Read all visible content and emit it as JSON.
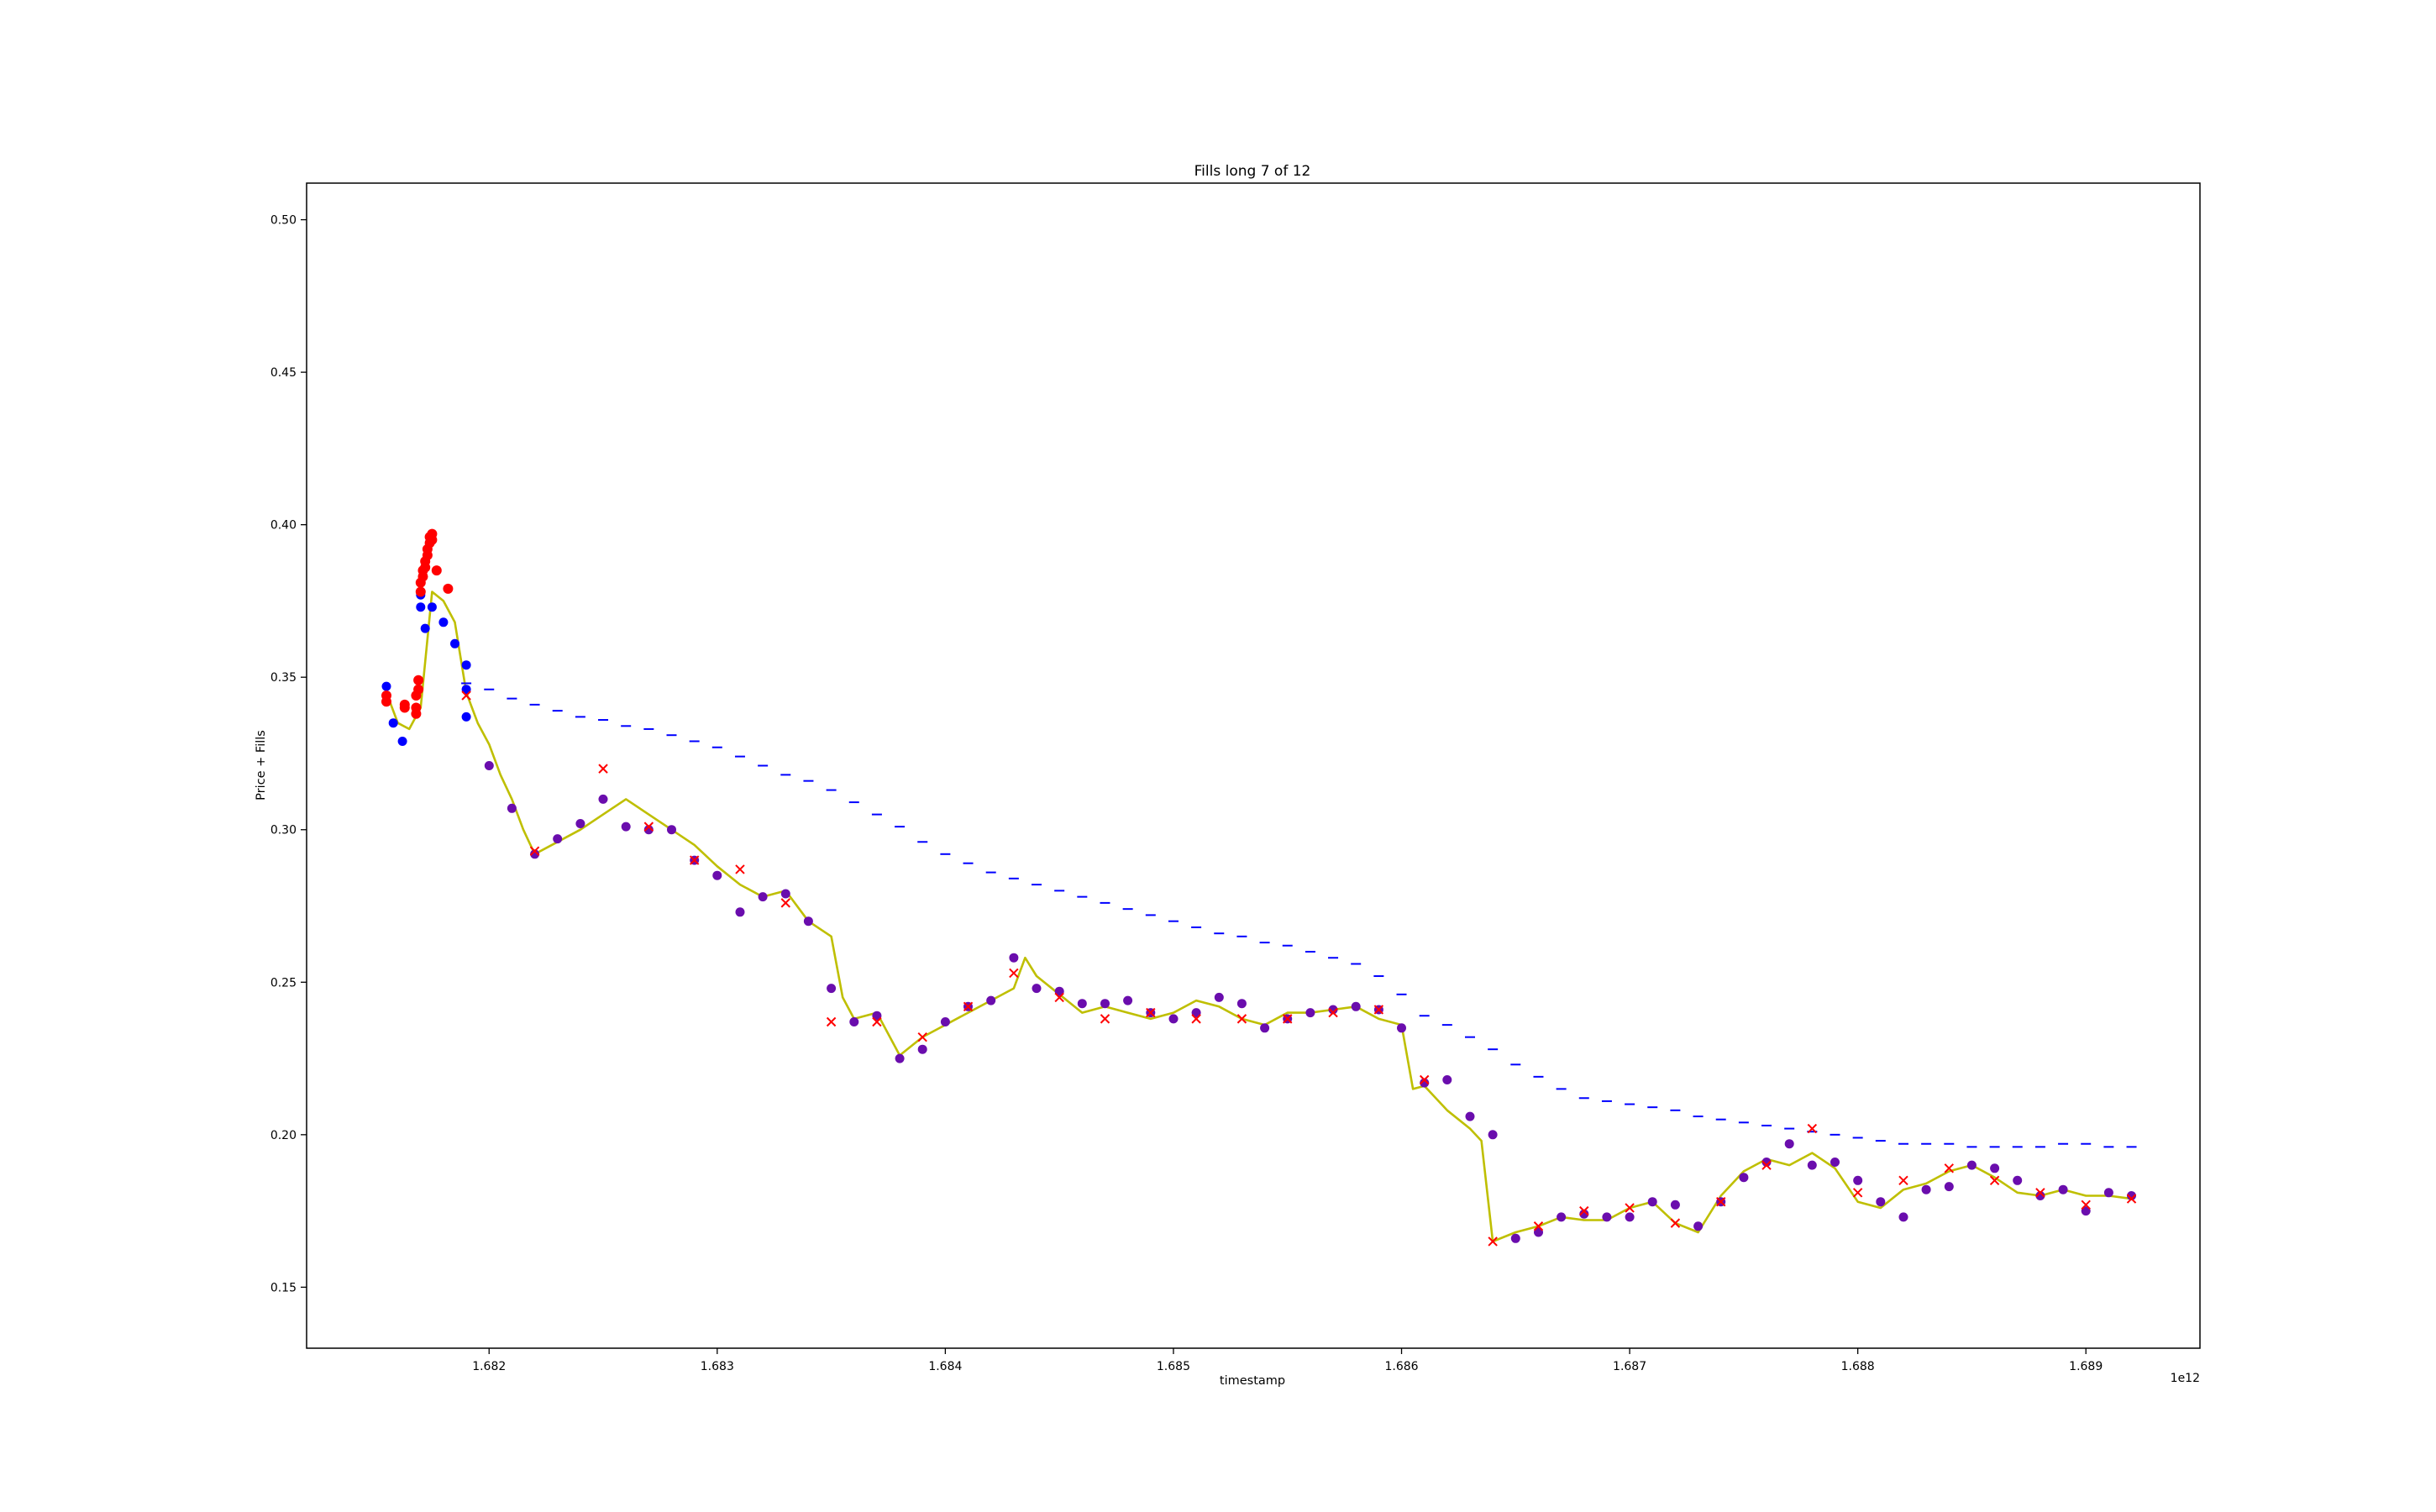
{
  "chart_data": {
    "type": "line",
    "title": "Fills long 7 of 12",
    "xlabel": "timestamp",
    "ylabel": "Price + Fills",
    "x_offset_label": "1e12",
    "xlim": [
      1.6812,
      1.6895
    ],
    "ylim": [
      0.13,
      0.512
    ],
    "x_ticks": [
      1.682,
      1.683,
      1.684,
      1.685,
      1.686,
      1.687,
      1.688,
      1.689
    ],
    "x_tick_labels": [
      "1.682",
      "1.683",
      "1.684",
      "1.685",
      "1.686",
      "1.687",
      "1.688",
      "1.689"
    ],
    "y_ticks": [
      0.15,
      0.2,
      0.25,
      0.3,
      0.35,
      0.4,
      0.45,
      0.5
    ],
    "y_tick_labels": [
      "0.15",
      "0.20",
      "0.25",
      "0.30",
      "0.35",
      "0.40",
      "0.45",
      "0.50"
    ],
    "grid": false,
    "colors": {
      "price": "#bfbf00",
      "entry_fill": "#0000ff",
      "close_fill": "#ff0000",
      "mixed_fill": "#6a0dad",
      "close_marker": "#ff0000",
      "position_price": "#0000ff"
    },
    "series": [
      {
        "role": "price",
        "x": [
          1.68155,
          1.6816,
          1.68165,
          1.6817,
          1.68175,
          1.6818,
          1.68185,
          1.6819,
          1.68195,
          1.682,
          1.68205,
          1.6821,
          1.68215,
          1.6822,
          1.6823,
          1.6824,
          1.6825,
          1.6826,
          1.6827,
          1.6828,
          1.6829,
          1.683,
          1.6831,
          1.6832,
          1.6833,
          1.6834,
          1.6835,
          1.68355,
          1.6836,
          1.6837,
          1.6838,
          1.6839,
          1.684,
          1.6841,
          1.6842,
          1.6843,
          1.68435,
          1.6844,
          1.6845,
          1.6846,
          1.6847,
          1.6848,
          1.6849,
          1.685,
          1.6851,
          1.6852,
          1.6853,
          1.6854,
          1.6855,
          1.6856,
          1.6857,
          1.6858,
          1.6859,
          1.686,
          1.68605,
          1.6861,
          1.6862,
          1.6863,
          1.68635,
          1.6864,
          1.6865,
          1.6866,
          1.6867,
          1.6868,
          1.6869,
          1.687,
          1.6871,
          1.6872,
          1.6873,
          1.6874,
          1.6875,
          1.6876,
          1.6877,
          1.6878,
          1.6879,
          1.688,
          1.6881,
          1.6882,
          1.6883,
          1.6884,
          1.6885,
          1.6886,
          1.6887,
          1.6888,
          1.6889,
          1.689,
          1.6891,
          1.6892
        ],
        "values": [
          0.345,
          0.335,
          0.333,
          0.34,
          0.378,
          0.375,
          0.368,
          0.345,
          0.335,
          0.328,
          0.318,
          0.31,
          0.3,
          0.292,
          0.296,
          0.3,
          0.305,
          0.31,
          0.305,
          0.3,
          0.295,
          0.288,
          0.282,
          0.278,
          0.28,
          0.27,
          0.265,
          0.245,
          0.238,
          0.24,
          0.226,
          0.232,
          0.236,
          0.24,
          0.244,
          0.248,
          0.258,
          0.252,
          0.246,
          0.24,
          0.242,
          0.24,
          0.238,
          0.24,
          0.244,
          0.242,
          0.238,
          0.236,
          0.24,
          0.24,
          0.241,
          0.242,
          0.238,
          0.236,
          0.215,
          0.216,
          0.208,
          0.202,
          0.198,
          0.165,
          0.168,
          0.17,
          0.173,
          0.172,
          0.172,
          0.176,
          0.178,
          0.171,
          0.168,
          0.18,
          0.188,
          0.192,
          0.19,
          0.194,
          0.189,
          0.178,
          0.176,
          0.182,
          0.184,
          0.188,
          0.19,
          0.186,
          0.181,
          0.18,
          0.182,
          0.18,
          0.18,
          0.179
        ]
      },
      {
        "role": "position_price",
        "x": [
          1.6819,
          1.682,
          1.6821,
          1.6822,
          1.6823,
          1.6824,
          1.6825,
          1.6826,
          1.6827,
          1.6828,
          1.6829,
          1.683,
          1.6831,
          1.6832,
          1.6833,
          1.6834,
          1.6835,
          1.6836,
          1.6837,
          1.6838,
          1.6839,
          1.684,
          1.6841,
          1.6842,
          1.6843,
          1.6844,
          1.6845,
          1.6846,
          1.6847,
          1.6848,
          1.6849,
          1.685,
          1.6851,
          1.6852,
          1.6853,
          1.6854,
          1.6855,
          1.6856,
          1.6857,
          1.6858,
          1.6859,
          1.686,
          1.6861,
          1.6862,
          1.6863,
          1.6864,
          1.6865,
          1.6866,
          1.6867,
          1.6868,
          1.6869,
          1.687,
          1.6871,
          1.6872,
          1.6873,
          1.6874,
          1.6875,
          1.6876,
          1.6877,
          1.6878,
          1.6879,
          1.688,
          1.6881,
          1.6882,
          1.6883,
          1.6884,
          1.6885,
          1.6886,
          1.6887,
          1.6888,
          1.6889,
          1.689,
          1.6891,
          1.6892
        ],
        "values": [
          0.348,
          0.346,
          0.343,
          0.341,
          0.339,
          0.337,
          0.336,
          0.334,
          0.333,
          0.331,
          0.329,
          0.327,
          0.324,
          0.321,
          0.318,
          0.316,
          0.313,
          0.309,
          0.305,
          0.301,
          0.296,
          0.292,
          0.289,
          0.286,
          0.284,
          0.282,
          0.28,
          0.278,
          0.276,
          0.274,
          0.272,
          0.27,
          0.268,
          0.266,
          0.265,
          0.263,
          0.262,
          0.26,
          0.258,
          0.256,
          0.252,
          0.246,
          0.239,
          0.236,
          0.232,
          0.228,
          0.223,
          0.219,
          0.215,
          0.212,
          0.211,
          0.21,
          0.209,
          0.208,
          0.206,
          0.205,
          0.204,
          0.203,
          0.202,
          0.201,
          0.2,
          0.199,
          0.198,
          0.197,
          0.197,
          0.197,
          0.196,
          0.196,
          0.196,
          0.196,
          0.197,
          0.197,
          0.196,
          0.196
        ]
      },
      {
        "role": "entry_fills",
        "x": [
          1.68155,
          1.68158,
          1.68162,
          1.6817,
          1.6817,
          1.68172,
          1.68175,
          1.6818,
          1.68185,
          1.6819,
          1.6819,
          1.6819,
          1.682,
          1.6821,
          1.6822,
          1.6823,
          1.6824,
          1.6825,
          1.6826,
          1.6827,
          1.6828,
          1.6829,
          1.683,
          1.6831,
          1.6832,
          1.6833,
          1.6834,
          1.6835,
          1.6836,
          1.6837,
          1.6838,
          1.6839,
          1.684,
          1.6841,
          1.6842,
          1.6843,
          1.6844,
          1.6845,
          1.6846,
          1.6847,
          1.6848,
          1.6849,
          1.685,
          1.6851,
          1.6852,
          1.6853,
          1.6854,
          1.6855,
          1.6856,
          1.6857,
          1.6858,
          1.6859,
          1.686,
          1.6861,
          1.6862,
          1.6863,
          1.6864,
          1.6865,
          1.6866,
          1.6867,
          1.6868,
          1.6869,
          1.687,
          1.6871,
          1.6872,
          1.6873,
          1.6874,
          1.6875,
          1.6876,
          1.6877,
          1.6878,
          1.6879,
          1.688,
          1.6881,
          1.6882,
          1.6883,
          1.6884,
          1.6885,
          1.6886,
          1.6887,
          1.6888,
          1.6889,
          1.689,
          1.6891,
          1.6892
        ],
        "values": [
          0.347,
          0.335,
          0.329,
          0.377,
          0.373,
          0.366,
          0.373,
          0.368,
          0.361,
          0.354,
          0.346,
          0.337,
          0.321,
          0.307,
          0.292,
          0.297,
          0.302,
          0.31,
          0.301,
          0.3,
          0.3,
          0.29,
          0.285,
          0.273,
          0.278,
          0.279,
          0.27,
          0.248,
          0.237,
          0.239,
          0.225,
          0.228,
          0.237,
          0.242,
          0.244,
          0.258,
          0.248,
          0.247,
          0.243,
          0.243,
          0.244,
          0.24,
          0.238,
          0.24,
          0.245,
          0.243,
          0.235,
          0.238,
          0.24,
          0.241,
          0.242,
          0.241,
          0.235,
          0.217,
          0.218,
          0.206,
          0.2,
          0.166,
          0.168,
          0.173,
          0.174,
          0.173,
          0.173,
          0.178,
          0.177,
          0.17,
          0.178,
          0.186,
          0.191,
          0.197,
          0.19,
          0.191,
          0.185,
          0.178,
          0.173,
          0.182,
          0.183,
          0.19,
          0.189,
          0.185,
          0.18,
          0.182,
          0.175,
          0.181,
          0.18
        ]
      },
      {
        "role": "close_fills",
        "x": [
          1.68155,
          1.68155,
          1.68163,
          1.68163,
          1.68168,
          1.68168,
          1.68168,
          1.68169,
          1.68169,
          1.6817,
          1.6817,
          1.68171,
          1.68171,
          1.68172,
          1.68172,
          1.68173,
          1.68173,
          1.68174,
          1.68174,
          1.68175,
          1.68175,
          1.68177,
          1.68182
        ],
        "values": [
          0.342,
          0.344,
          0.34,
          0.341,
          0.338,
          0.34,
          0.344,
          0.346,
          0.349,
          0.378,
          0.381,
          0.383,
          0.385,
          0.386,
          0.388,
          0.39,
          0.392,
          0.394,
          0.396,
          0.395,
          0.397,
          0.385,
          0.379
        ]
      },
      {
        "role": "close_markers",
        "x": [
          1.6819,
          1.6822,
          1.6825,
          1.6827,
          1.6829,
          1.6831,
          1.6833,
          1.6835,
          1.6837,
          1.6839,
          1.6841,
          1.6843,
          1.6845,
          1.6847,
          1.6849,
          1.6851,
          1.6853,
          1.6855,
          1.6857,
          1.6859,
          1.6861,
          1.6864,
          1.6866,
          1.6868,
          1.687,
          1.6872,
          1.6874,
          1.6876,
          1.6878,
          1.688,
          1.6882,
          1.6884,
          1.6886,
          1.6888,
          1.689,
          1.6892
        ],
        "values": [
          0.344,
          0.293,
          0.32,
          0.301,
          0.29,
          0.287,
          0.276,
          0.237,
          0.237,
          0.232,
          0.242,
          0.253,
          0.245,
          0.238,
          0.24,
          0.238,
          0.238,
          0.238,
          0.24,
          0.241,
          0.218,
          0.165,
          0.17,
          0.175,
          0.176,
          0.171,
          0.178,
          0.19,
          0.202,
          0.181,
          0.185,
          0.189,
          0.185,
          0.181,
          0.177,
          0.179
        ]
      }
    ]
  }
}
